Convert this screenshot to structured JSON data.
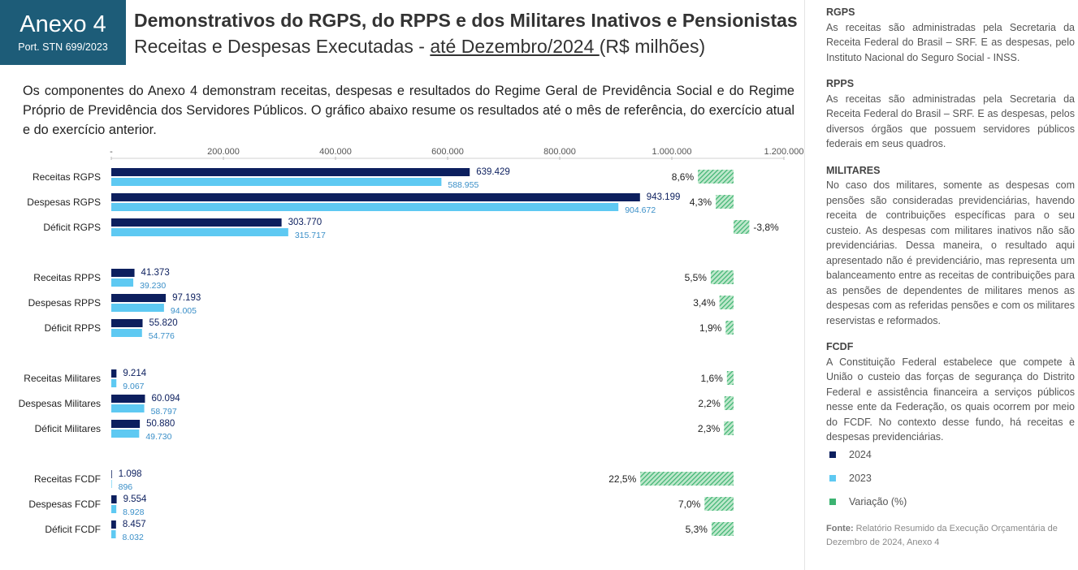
{
  "header": {
    "badge_title": "Anexo 4",
    "badge_subtitle": "Port. STN 699/2023",
    "title": "Demonstrativos do RGPS, do RPPS e dos Militares Inativos e Pensionistas",
    "subtitle_start": "Receitas e Despesas Executadas - ",
    "subtitle_underlined": "até Dezembro/2024 ",
    "subtitle_end": "(R$ milhões)"
  },
  "intro": "Os componentes do Anexo 4 demonstram receitas, despesas e resultados do Regime Geral de Previdência Social e do Regime Próprio de Previdência dos Servidores Públicos. O gráfico abaixo resume os resultados até o mês de referência, do exercício atual e do exercício anterior.",
  "sidebar": [
    {
      "heading": "RGPS",
      "text": "As receitas são administradas pela Secretaria da Receita Federal do Brasil – SRF. E as despesas, pelo Instituto Nacional do Seguro Social - INSS."
    },
    {
      "heading": "RPPS",
      "text": "As receitas são administradas pela Secretaria da Receita Federal do Brasil – SRF. E as despesas, pelos diversos órgãos que possuem servidores públicos federais em seus quadros."
    },
    {
      "heading": "MILITARES",
      "text": "No caso dos militares, somente as despesas com pensões são consideradas previdenciárias, havendo receita de contribuições específicas para o seu custeio. As despesas com militares inativos não são previdenciárias. Dessa maneira, o resultado aqui apresentado não é previdenciário, mas representa um balanceamento entre as receitas de contribuições para as pensões de dependentes de militares menos as despesas com as referidas pensões e com os militares reservistas e reformados."
    },
    {
      "heading": "FCDF",
      "text": "A Constituição Federal estabelece que compete à União o custeio das forças de segurança do Distrito Federal e assistência financeira a serviços públicos nesse ente da Federação, os quais ocorrem por meio do FCDF. No contexto desse fundo, há receitas e despesas previdenciárias."
    }
  ],
  "source": {
    "label": "Fonte:",
    "text": "Relatório Resumido da Execução Orçamentária de Dezembro de 2024, Anexo 4"
  },
  "chart_data": {
    "type": "hbar",
    "categories": [
      "Receitas RGPS",
      "Despesas RGPS",
      "Déficit RGPS",
      "Receitas RPPS",
      "Despesas RPPS",
      "Déficit RPPS",
      "Receitas Militares",
      "Despesas Militares",
      "Déficit Militares",
      "Receitas FCDF",
      "Despesas FCDF",
      "Déficit FCDF"
    ],
    "xlim": [
      0,
      1200000
    ],
    "xticks": [
      {
        "value": 0,
        "label": "-"
      },
      {
        "value": 200000,
        "label": "200.000"
      },
      {
        "value": 400000,
        "label": "400.000"
      },
      {
        "value": 600000,
        "label": "600.000"
      },
      {
        "value": 800000,
        "label": "800.000"
      },
      {
        "value": 1000000,
        "label": "1.000.000"
      },
      {
        "value": 1200000,
        "label": "1.200.000"
      }
    ],
    "series": [
      {
        "name": "2024",
        "color": "#0c1f5e",
        "values": [
          639429,
          943199,
          303770,
          41373,
          97193,
          55820,
          9214,
          60094,
          50880,
          1098,
          9554,
          8457
        ],
        "value_labels": [
          "639.429",
          "943.199",
          "303.770",
          "41.373",
          "97.193",
          "55.820",
          "9.214",
          "60.094",
          "50.880",
          "1.098",
          "9.554",
          "8.457"
        ]
      },
      {
        "name": "2023",
        "color": "#5ec9f2",
        "values": [
          588955,
          904672,
          315717,
          39230,
          94005,
          54776,
          9067,
          58797,
          49730,
          896,
          8928,
          8032
        ],
        "value_labels": [
          "588.955",
          "904.672",
          "315.717",
          "39.230",
          "94.005",
          "54.776",
          "9.067",
          "58.797",
          "49.730",
          "896",
          "8.928",
          "8.032"
        ]
      }
    ],
    "variation": {
      "name": "Variação (%)",
      "color": "#3cb371",
      "values": [
        8.6,
        4.3,
        -3.8,
        5.5,
        3.4,
        1.9,
        1.6,
        2.2,
        2.3,
        22.5,
        7.0,
        5.3
      ],
      "value_labels": [
        "8,6%",
        "4,3%",
        "-3,8%",
        "5,5%",
        "3,4%",
        "1,9%",
        "1,6%",
        "2,2%",
        "2,3%",
        "22,5%",
        "7,0%",
        "5,3%"
      ]
    }
  }
}
